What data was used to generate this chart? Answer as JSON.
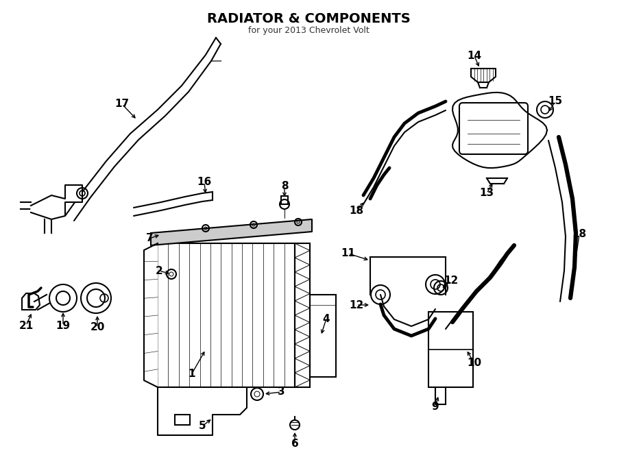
{
  "title": "RADIATOR & COMPONENTS",
  "subtitle": "for your 2013 Chevrolet Volt",
  "bg_color": "#ffffff",
  "line_color": "#000000",
  "fig_width": 9.0,
  "fig_height": 6.61,
  "dpi": 100
}
